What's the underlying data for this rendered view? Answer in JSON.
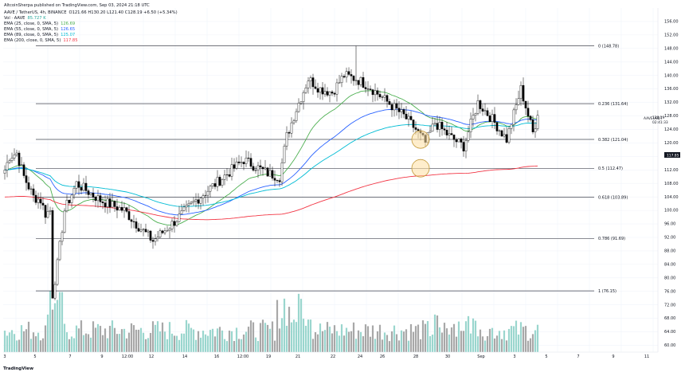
{
  "header": {
    "published": "AltcoinSherpa published on TradingView.com, Sep 03, 2024 21:18 UTC",
    "symbol_line": "AAVE / TetherUS, 4h, BINANCE",
    "ohlc": "O121.66 H130.20 L121.40 C128.19 +6.50 (+5.34%)",
    "volume": {
      "label": "Vol · AAVE",
      "value": "85.727 K",
      "color": "#26a69a"
    },
    "emas": [
      {
        "label": "EMA (25, close, 0, SMA, 5)",
        "value": "126.69",
        "color": "#4caf50"
      },
      {
        "label": "EMA (55, close, 0, SMA, 5)",
        "value": "126.65",
        "color": "#2962ff"
      },
      {
        "label": "EMA (89, close, 0, SMA, 5)",
        "value": "125.07",
        "color": "#00bcd4"
      },
      {
        "label": "EMA (200, close, 0, SMA, 5)",
        "value": "117.85",
        "color": "#f23645"
      }
    ]
  },
  "right_labels": {
    "symbol": "AAVEUSDT",
    "price": "128.19",
    "countdown": "02:41:33",
    "ema200_price": "117.85"
  },
  "footer": {
    "brand": "TradingView"
  },
  "chart_data": {
    "type": "candlestick",
    "y_range": [
      58,
      160
    ],
    "y_ticks": [
      60,
      64,
      68,
      72,
      76,
      80,
      84,
      88,
      92,
      96,
      100,
      104,
      108,
      112,
      116,
      120,
      124,
      128,
      132,
      136,
      140,
      144,
      148,
      152,
      156
    ],
    "x_ticks": [
      "3",
      "5",
      "7",
      "9",
      "12:00",
      "12",
      "14",
      "16",
      "12:00",
      "19",
      "21",
      "22",
      "24",
      "26",
      "28",
      "30",
      "Sep",
      "3",
      "5",
      "7",
      "9",
      "11"
    ],
    "fib_levels": [
      {
        "label": "0 (148.78)",
        "value": 148.78
      },
      {
        "label": "0.236 (131.64)",
        "value": 131.64
      },
      {
        "label": "0.382 (121.04)",
        "value": 121.04
      },
      {
        "label": "0.5 (112.47)",
        "value": 112.47
      },
      {
        "label": "0.618 (103.89)",
        "value": 103.89
      },
      {
        "label": "0.786 (91.69)",
        "value": 91.69
      },
      {
        "label": "1 (76.15)",
        "value": 76.15
      }
    ],
    "highlight_circles": [
      {
        "at_candle": 174,
        "value": 121.0
      },
      {
        "at_candle": 174,
        "value": 112.5
      }
    ],
    "candle_count": 224,
    "anchors": [
      [
        0,
        112
      ],
      [
        2,
        116
      ],
      [
        5,
        117
      ],
      [
        8,
        110
      ],
      [
        12,
        104
      ],
      [
        15,
        103
      ],
      [
        17,
        99
      ],
      [
        19,
        100
      ],
      [
        20,
        75
      ],
      [
        22,
        84
      ],
      [
        25,
        100
      ],
      [
        30,
        108
      ],
      [
        40,
        103
      ],
      [
        50,
        100
      ],
      [
        55,
        96
      ],
      [
        62,
        91
      ],
      [
        70,
        96
      ],
      [
        80,
        103
      ],
      [
        90,
        109
      ],
      [
        100,
        115
      ],
      [
        110,
        111
      ],
      [
        115,
        110
      ],
      [
        118,
        122
      ],
      [
        122,
        130
      ],
      [
        127,
        139
      ],
      [
        132,
        136
      ],
      [
        137,
        135
      ],
      [
        142,
        140
      ],
      [
        147,
        139
      ],
      [
        152,
        137
      ],
      [
        157,
        134
      ],
      [
        162,
        131
      ],
      [
        167,
        128
      ],
      [
        172,
        124
      ],
      [
        176,
        120
      ],
      [
        180,
        126
      ],
      [
        186,
        122
      ],
      [
        192,
        119
      ],
      [
        198,
        132
      ],
      [
        204,
        127
      ],
      [
        210,
        121
      ],
      [
        216,
        136
      ],
      [
        221,
        123
      ],
      [
        223,
        128
      ]
    ],
    "volume_note": "volume bars in shared pane at bottom"
  }
}
